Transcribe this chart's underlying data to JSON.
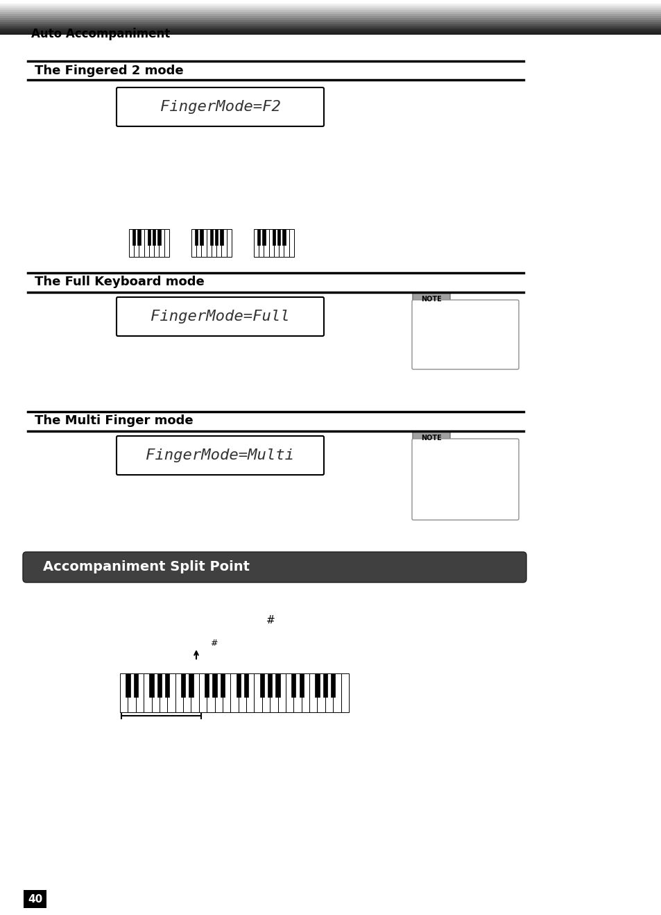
{
  "bg_color": "#ffffff",
  "page_num": "40",
  "header_text": "Auto Accompaniment",
  "section1_title": "The Fingered 2 mode",
  "section1_display": "FingerMode=F2",
  "section2_title": "The Full Keyboard mode",
  "section2_display": "FingerMode=Full",
  "section3_title": "The Multi Finger mode",
  "section3_display": "FingerMode=Multi",
  "bottom_section_title": "Accompaniment Split Point",
  "bottom_section_bg": "#404040",
  "note_label": "NOTE"
}
